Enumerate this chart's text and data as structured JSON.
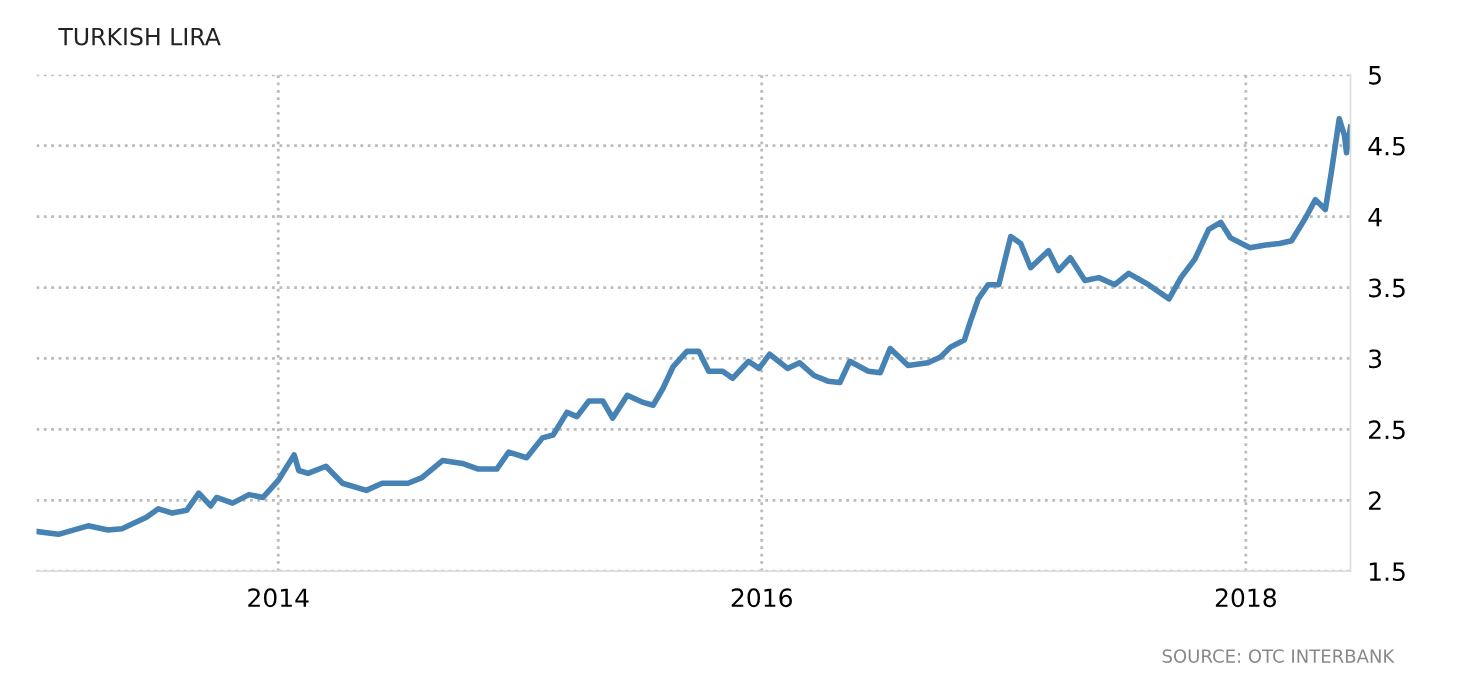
{
  "chart_data": {
    "type": "line",
    "title": "TURKISH LIRA",
    "annotations": [
      "SOURCE: OTC INTERBANK"
    ],
    "x": [
      "2013-01-02",
      "2013-02-03",
      "2013-03-20",
      "2013-04-19",
      "2013-05-10",
      "2013-06-16",
      "2013-07-04",
      "2013-07-25",
      "2013-08-16",
      "2013-09-03",
      "2013-09-21",
      "2013-09-30",
      "2013-10-24",
      "2013-11-18",
      "2013-12-09",
      "2014-01-01",
      "2014-01-25",
      "2014-02-01",
      "2014-02-15",
      "2014-03-14",
      "2014-04-08",
      "2014-05-14",
      "2014-06-07",
      "2014-07-16",
      "2014-08-06",
      "2014-09-06",
      "2014-10-06",
      "2014-10-30",
      "2014-11-27",
      "2014-12-15",
      "2015-01-11",
      "2015-02-04",
      "2015-02-20",
      "2015-03-13",
      "2015-03-28",
      "2015-04-15",
      "2015-05-06",
      "2015-05-21",
      "2015-06-12",
      "2015-07-06",
      "2015-07-21",
      "2015-08-05",
      "2015-08-20",
      "2015-09-10",
      "2015-09-28",
      "2015-10-13",
      "2015-11-03",
      "2015-11-18",
      "2015-12-12",
      "2015-12-28",
      "2016-01-13",
      "2016-02-09",
      "2016-02-27",
      "2016-03-20",
      "2016-04-10",
      "2016-04-28",
      "2016-05-13",
      "2016-06-10",
      "2016-06-28",
      "2016-07-13",
      "2016-08-09",
      "2016-09-08",
      "2016-09-27",
      "2016-10-12",
      "2016-11-02",
      "2016-11-11",
      "2016-11-23",
      "2016-12-08",
      "2016-12-24",
      "2017-01-11",
      "2017-01-26",
      "2017-02-10",
      "2017-03-09",
      "2017-03-24",
      "2017-04-11",
      "2017-05-03",
      "2017-05-24",
      "2017-06-17",
      "2017-07-08",
      "2017-08-07",
      "2017-09-07",
      "2017-09-25",
      "2017-10-16",
      "2017-11-06",
      "2017-11-24",
      "2017-12-09",
      "2018-01-07",
      "2018-01-31",
      "2018-02-21",
      "2018-03-11",
      "2018-04-01",
      "2018-04-16",
      "2018-05-01",
      "2018-05-10",
      "2018-05-22",
      "2018-05-30",
      "2018-06-02",
      "2018-06-08"
    ],
    "series": [
      {
        "color": "#4682b4",
        "values": [
          1.78,
          1.76,
          1.82,
          1.79,
          1.8,
          1.88,
          1.94,
          1.91,
          1.93,
          2.05,
          1.96,
          2.02,
          1.98,
          2.04,
          2.02,
          2.14,
          2.32,
          2.21,
          2.19,
          2.24,
          2.12,
          2.07,
          2.12,
          2.12,
          2.16,
          2.28,
          2.26,
          2.22,
          2.22,
          2.34,
          2.3,
          2.44,
          2.46,
          2.62,
          2.59,
          2.7,
          2.7,
          2.58,
          2.74,
          2.69,
          2.67,
          2.79,
          2.94,
          3.05,
          3.05,
          2.91,
          2.91,
          2.86,
          2.98,
          2.93,
          3.03,
          2.93,
          2.97,
          2.88,
          2.84,
          2.83,
          2.98,
          2.91,
          2.9,
          3.07,
          2.95,
          2.97,
          3.01,
          3.08,
          3.13,
          3.26,
          3.42,
          3.52,
          3.52,
          3.86,
          3.81,
          3.64,
          3.76,
          3.62,
          3.71,
          3.55,
          3.57,
          3.52,
          3.6,
          3.52,
          3.42,
          3.57,
          3.7,
          3.91,
          3.96,
          3.85,
          3.78,
          3.8,
          3.81,
          3.83,
          3.99,
          4.12,
          4.05,
          4.31,
          4.69,
          4.57,
          4.45,
          4.63
        ]
      }
    ],
    "xlim": [
      "2013-01-01",
      "2018-06-08"
    ],
    "xticks": [
      {
        "value": "2014-01-01",
        "label": "2014"
      },
      {
        "value": "2016-01-01",
        "label": "2016"
      },
      {
        "value": "2018-01-01",
        "label": "2018"
      }
    ],
    "ylim": [
      1.5,
      5
    ],
    "yticks": [
      1.5,
      2,
      2.5,
      3,
      3.5,
      4,
      4.5,
      5
    ],
    "grid": true,
    "line_style": "solid",
    "marker": "none"
  }
}
